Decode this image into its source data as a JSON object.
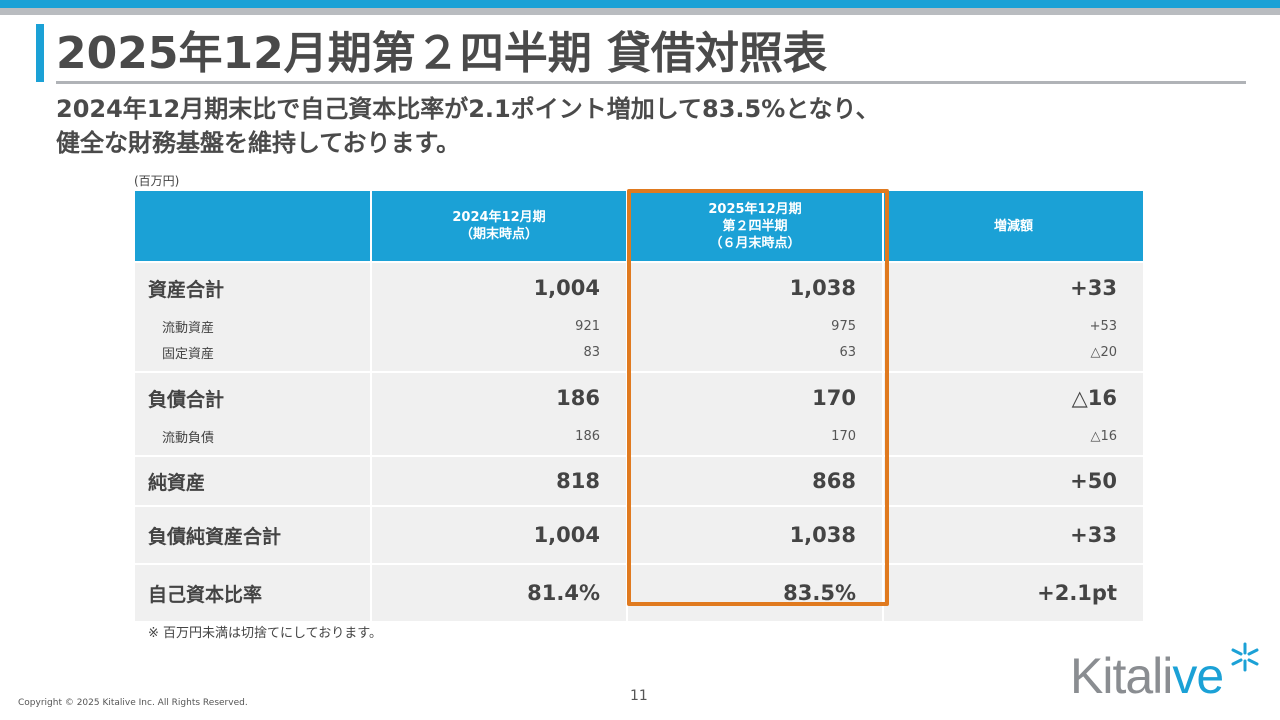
{
  "title": "2025年12月期第２四半期 貸借対照表",
  "subtitle_lines": [
    "2024年12月期末比で自己資本比率が2.1ポイント増加して83.5%となり、",
    "健全な財務基盤を維持しております。"
  ],
  "unit": "(百万円)",
  "headers": {
    "col1": [
      "2024年12月期",
      "（期末時点）"
    ],
    "col2": [
      "2025年12月期",
      "第２四半期",
      "（６月末時点）"
    ],
    "col3": [
      "増減額"
    ]
  },
  "rows": {
    "assets_total": {
      "label": "資産合計",
      "v1": "1,004",
      "v2": "1,038",
      "v3": "+33"
    },
    "current_assets": {
      "label": "流動資産",
      "v1": "921",
      "v2": "975",
      "v3": "+53"
    },
    "fixed_assets": {
      "label": "固定資産",
      "v1": "83",
      "v2": "63",
      "v3": "△20"
    },
    "liabilities_total": {
      "label": "負債合計",
      "v1": "186",
      "v2": "170",
      "v3": "△16"
    },
    "current_liabilities": {
      "label": "流動負債",
      "v1": "186",
      "v2": "170",
      "v3": "△16"
    },
    "net_assets": {
      "label": "純資産",
      "v1": "818",
      "v2": "868",
      "v3": "+50"
    },
    "liabilities_net_assets_total": {
      "label": "負債純資産合計",
      "v1": "1,004",
      "v2": "1,038",
      "v3": "+33"
    },
    "equity_ratio": {
      "label": "自己資本比率",
      "v1": "81.4%",
      "v2": "83.5%",
      "v3": "+2.1pt"
    }
  },
  "note": "※ 百万円未満は切捨てにしております。",
  "page_number": "11",
  "copyright": "Copyright © 2025 Kitalive Inc. All Rights Reserved.",
  "logo": {
    "text_main": "Kitali",
    "text_accent": "ve",
    "icon": "asterisk-star-icon"
  },
  "colors": {
    "accent": "#1ba1d6",
    "highlight": "#e07a1f",
    "cell_bg": "#f0f0f0",
    "text": "#4a4a4a"
  }
}
